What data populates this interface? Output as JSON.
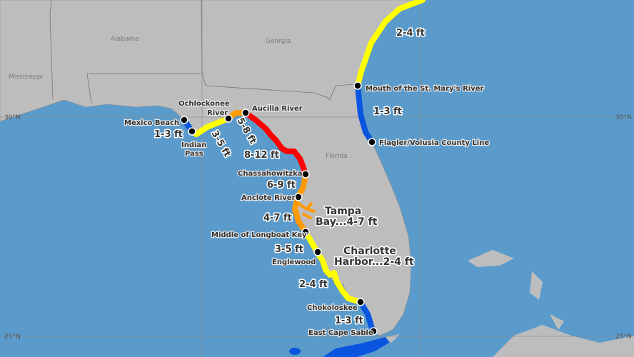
{
  "map": {
    "states": [
      "Alabama",
      "Georgia",
      "Mississippi",
      "Florida"
    ],
    "latitude_labels": [
      "30°N",
      "25°N"
    ],
    "colors": {
      "1-3 ft": "#0a55e0",
      "2-4 ft / 3-5 ft": "#ffff00",
      "4-7 ft / 5-8 ft / 6-9 ft": "#ff9a00",
      "8-12 ft": "#ff0000",
      "land": "#bdbdbd",
      "water": "#5b9bcb"
    },
    "points": [
      "Mouth of the St. Mary's River",
      "Flagler/Volusia County Line",
      "Ochlockonee",
      "River",
      "Aucilla River",
      "Mexico Beach",
      "Indian",
      "Pass",
      "Chassahowitzka",
      "Anclote River",
      "Middle of Longboat Key",
      "Englewood",
      "Chokoloskee",
      "East Cape Sable"
    ],
    "surge_labels": [
      "2-4 ft",
      "1-3 ft",
      "1-3 ft",
      "3-5 ft",
      "5-8 ft",
      "8-12 ft",
      "6-9 ft",
      "4-7 ft",
      "3-5 ft",
      "2-4 ft",
      "1-3 ft"
    ],
    "bay_labels": {
      "tampa_1": "Tampa",
      "tampa_2": "Bay...4-7 ft",
      "charlotte_1": "Charlotte",
      "charlotte_2": "Harbor...2-4 ft"
    }
  }
}
